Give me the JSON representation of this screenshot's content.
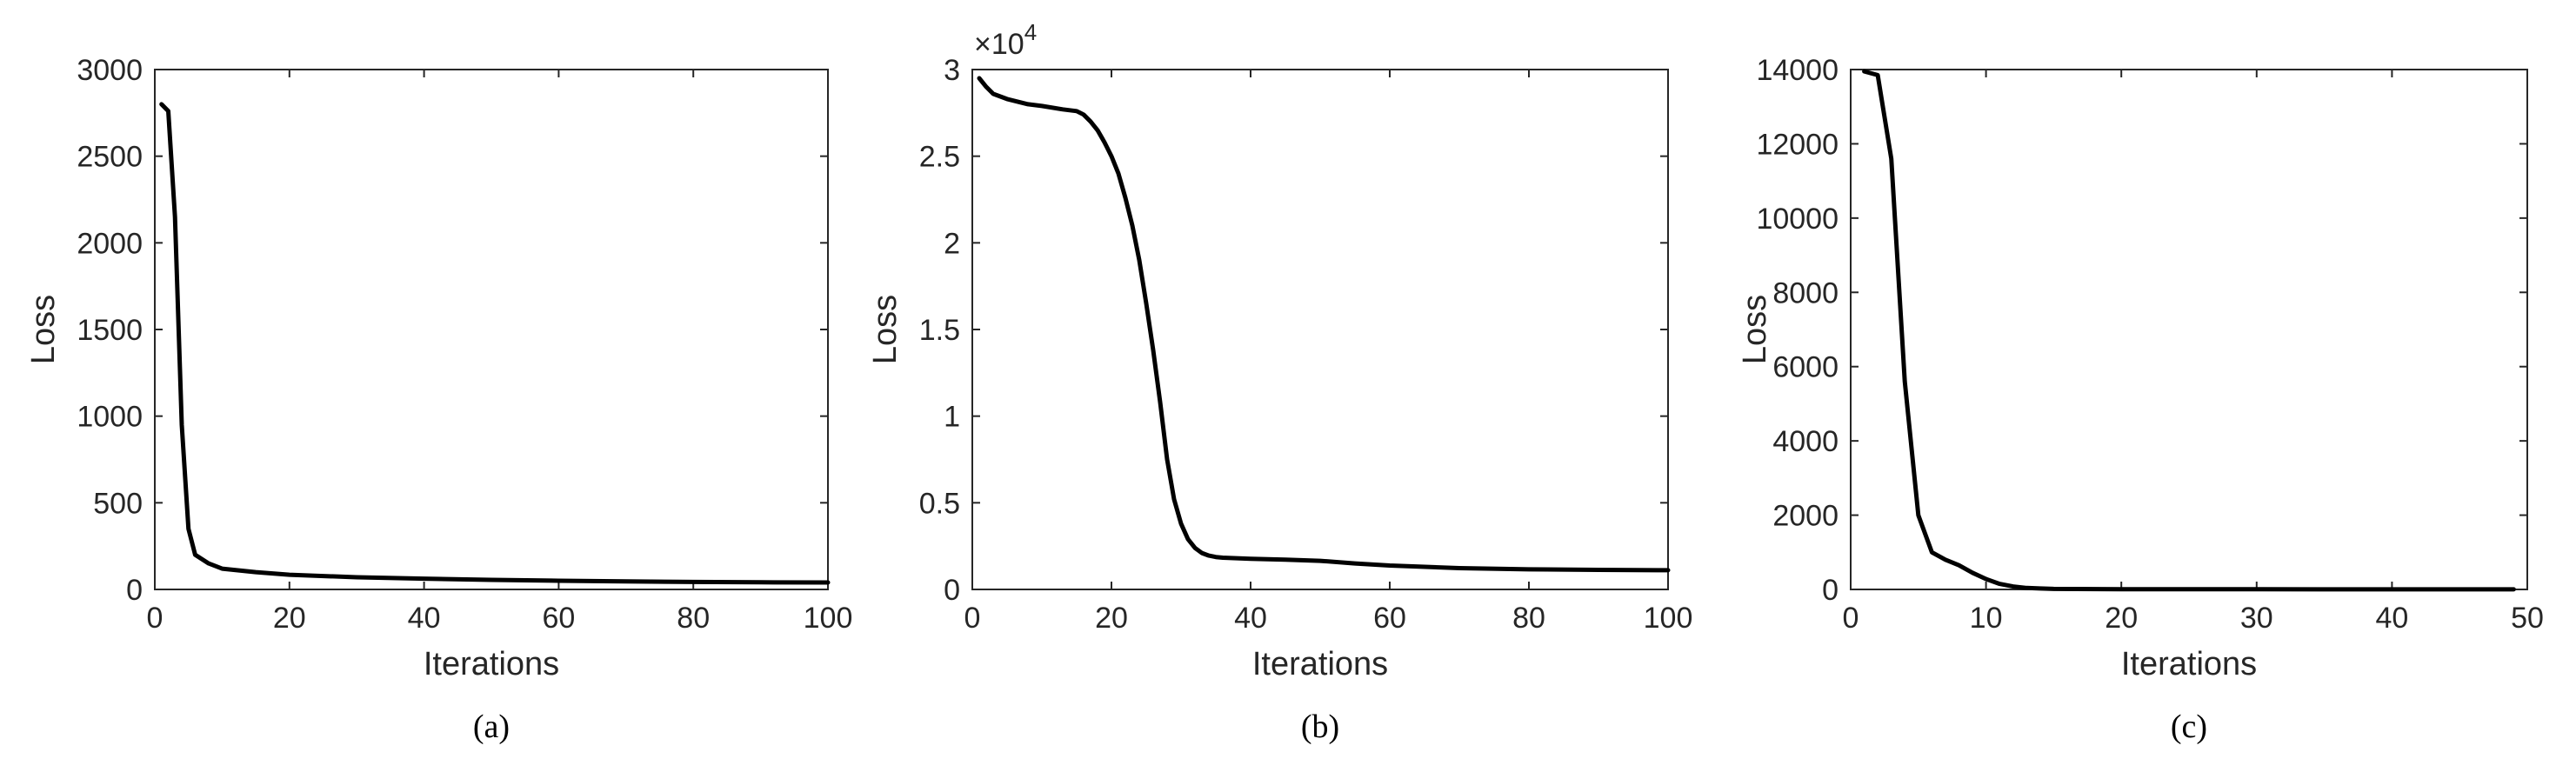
{
  "chart_data": [
    {
      "type": "line",
      "panel_label": "(a)",
      "xlabel": "Iterations",
      "ylabel": "Loss",
      "xlim": [
        0,
        100
      ],
      "ylim": [
        0,
        3000
      ],
      "xticks": [
        0,
        20,
        40,
        60,
        80,
        100
      ],
      "yticks": [
        0,
        500,
        1000,
        1500,
        2000,
        2500,
        3000
      ],
      "grid": false,
      "series": [
        {
          "color": "#000000",
          "x": [
            1,
            2,
            3,
            4,
            5,
            6,
            8,
            10,
            15,
            20,
            30,
            40,
            50,
            60,
            70,
            80,
            90,
            100
          ],
          "y": [
            2800,
            2760,
            2150,
            950,
            350,
            200,
            150,
            120,
            100,
            85,
            70,
            62,
            55,
            50,
            46,
            43,
            41,
            40
          ]
        }
      ]
    },
    {
      "type": "line",
      "panel_label": "(b)",
      "xlabel": "Iterations",
      "ylabel": "Loss",
      "y_exponent_label": "×10",
      "y_exponent_power": "4",
      "xlim": [
        0,
        100
      ],
      "ylim": [
        0,
        30000
      ],
      "xticks": [
        0,
        20,
        40,
        60,
        80,
        100
      ],
      "ytick_values": [
        0,
        5000,
        10000,
        15000,
        20000,
        25000,
        30000
      ],
      "ytick_labels": [
        "0",
        "0.5",
        "1",
        "1.5",
        "2",
        "2.5",
        "3"
      ],
      "grid": false,
      "series": [
        {
          "color": "#000000",
          "x": [
            1,
            2,
            3,
            5,
            8,
            10,
            13,
            15,
            16,
            17,
            18,
            19,
            20,
            21,
            22,
            23,
            24,
            25,
            26,
            27,
            28,
            29,
            30,
            31,
            32,
            33,
            34,
            35,
            36,
            38,
            40,
            45,
            50,
            55,
            60,
            70,
            80,
            90,
            100
          ],
          "y": [
            29500,
            29000,
            28600,
            28300,
            28000,
            27900,
            27700,
            27600,
            27400,
            27000,
            26500,
            25800,
            25000,
            24000,
            22600,
            21000,
            19000,
            16500,
            13800,
            10800,
            7500,
            5200,
            3800,
            2900,
            2400,
            2100,
            1950,
            1870,
            1830,
            1800,
            1770,
            1720,
            1650,
            1500,
            1380,
            1230,
            1160,
            1130,
            1110
          ]
        }
      ]
    },
    {
      "type": "line",
      "panel_label": "(c)",
      "xlabel": "Iterations",
      "ylabel": "Loss",
      "xlim": [
        0,
        50
      ],
      "ylim": [
        0,
        14000
      ],
      "xticks": [
        0,
        10,
        20,
        30,
        40,
        50
      ],
      "yticks": [
        0,
        2000,
        4000,
        6000,
        8000,
        10000,
        12000,
        14000
      ],
      "grid": false,
      "series": [
        {
          "color": "#000000",
          "x": [
            1,
            2,
            3,
            4,
            5,
            6,
            7,
            8,
            9,
            10,
            11,
            12,
            13,
            14,
            15,
            20,
            30,
            40,
            49
          ],
          "y": [
            13950,
            13850,
            11600,
            5600,
            2000,
            1000,
            800,
            650,
            450,
            280,
            150,
            80,
            40,
            25,
            15,
            8,
            5,
            3,
            2
          ]
        }
      ]
    }
  ]
}
